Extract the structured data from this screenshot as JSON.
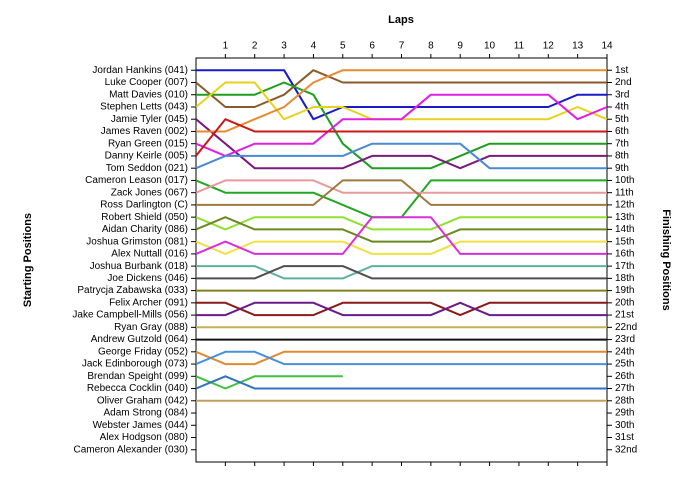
{
  "chart_data": {
    "type": "line",
    "title": "Laps",
    "y_label": "Starting Positions",
    "y2_label": "Finishing Positions",
    "x": [
      0,
      1,
      2,
      3,
      4,
      5,
      6,
      7,
      8,
      9,
      10,
      11,
      12,
      13,
      14
    ],
    "xlim": [
      0,
      14
    ],
    "xticks": [
      1,
      2,
      3,
      4,
      5,
      6,
      7,
      8,
      9,
      10,
      11,
      12,
      13,
      14
    ],
    "ylim": [
      33,
      0
    ],
    "y2lim": [
      33,
      0
    ],
    "y2ticks": [
      {
        "value": 1,
        "label": "1st"
      },
      {
        "value": 2,
        "label": "2nd"
      },
      {
        "value": 3,
        "label": "3rd"
      },
      {
        "value": 4,
        "label": "4th"
      },
      {
        "value": 5,
        "label": "5th"
      },
      {
        "value": 6,
        "label": "6th"
      },
      {
        "value": 7,
        "label": "7th"
      },
      {
        "value": 8,
        "label": "8th"
      },
      {
        "value": 9,
        "label": "9th"
      },
      {
        "value": 10,
        "label": "10th"
      },
      {
        "value": 11,
        "label": "11th"
      },
      {
        "value": 12,
        "label": "12th"
      },
      {
        "value": 13,
        "label": "13th"
      },
      {
        "value": 14,
        "label": "14th"
      },
      {
        "value": 15,
        "label": "15th"
      },
      {
        "value": 16,
        "label": "16th"
      },
      {
        "value": 17,
        "label": "17th"
      },
      {
        "value": 18,
        "label": "18th"
      },
      {
        "value": 19,
        "label": "19th"
      },
      {
        "value": 20,
        "label": "20th"
      },
      {
        "value": 21,
        "label": "21st"
      },
      {
        "value": 22,
        "label": "22nd"
      },
      {
        "value": 23,
        "label": "23rd"
      },
      {
        "value": 24,
        "label": "24th"
      },
      {
        "value": 25,
        "label": "25th"
      },
      {
        "value": 26,
        "label": "26th"
      },
      {
        "value": 27,
        "label": "27th"
      },
      {
        "value": 28,
        "label": "28th"
      },
      {
        "value": 29,
        "label": "29th"
      },
      {
        "value": 30,
        "label": "30th"
      },
      {
        "value": 31,
        "label": "31st"
      },
      {
        "value": 32,
        "label": "32nd"
      }
    ],
    "series": [
      {
        "name": "Jordan Hankins (041)",
        "color": "#1a1ac8",
        "values": [
          1,
          1,
          1,
          1,
          5,
          4,
          4,
          4,
          4,
          4,
          4,
          4,
          4,
          3,
          3
        ]
      },
      {
        "name": "Luke Cooper (007)",
        "color": "#8b5a2b",
        "values": [
          2,
          4,
          4,
          3,
          1,
          2,
          2,
          2,
          2,
          2,
          2,
          2,
          2,
          2,
          2
        ]
      },
      {
        "name": "Matt Davies (010)",
        "color": "#1e9e1e",
        "values": [
          3,
          3,
          3,
          2,
          3,
          7,
          9,
          9,
          9,
          8,
          7,
          7,
          7,
          7,
          7
        ]
      },
      {
        "name": "Stephen Letts (043)",
        "color": "#e6d21e",
        "values": [
          4,
          2,
          2,
          5,
          4,
          4,
          5,
          5,
          5,
          5,
          5,
          5,
          5,
          4,
          5
        ]
      },
      {
        "name": "Jamie Tyler (045)",
        "color": "#7a1a7a",
        "values": [
          5,
          7,
          9,
          9,
          9,
          9,
          8,
          8,
          8,
          9,
          8,
          8,
          8,
          8,
          8
        ]
      },
      {
        "name": "James Raven (002)",
        "color": "#e88a2e",
        "values": [
          6,
          6,
          5,
          4,
          2,
          1,
          1,
          1,
          1,
          1,
          1,
          1,
          1,
          1,
          1
        ]
      },
      {
        "name": "Ryan Green (015)",
        "color": "#e020e0",
        "values": [
          7,
          8,
          7,
          7,
          7,
          5,
          5,
          5,
          3,
          3,
          3,
          3,
          3,
          5,
          4
        ]
      },
      {
        "name": "Danny Keirle (005)",
        "color": "#c81818",
        "values": [
          8,
          5,
          6,
          6,
          6,
          6,
          6,
          6,
          6,
          6,
          6,
          6,
          6,
          6,
          6
        ]
      },
      {
        "name": "Tom Seddon (021)",
        "color": "#4a8ad0",
        "values": [
          9,
          8,
          8,
          8,
          8,
          8,
          7,
          7,
          7,
          7,
          9,
          9,
          9,
          9,
          9
        ]
      },
      {
        "name": "Cameron Leason (017)",
        "color": "#22a822",
        "values": [
          10,
          11,
          11,
          11,
          11,
          12,
          13,
          13,
          10,
          10,
          10,
          10,
          10,
          10,
          10
        ]
      },
      {
        "name": "Zack Jones (067)",
        "color": "#e89a9a",
        "values": [
          11,
          10,
          10,
          10,
          10,
          11,
          11,
          11,
          11,
          11,
          11,
          11,
          11,
          11,
          11
        ]
      },
      {
        "name": "Ross Darlington (C)",
        "color": "#a07840",
        "values": [
          12,
          12,
          12,
          12,
          12,
          10,
          10,
          10,
          12,
          12,
          12,
          12,
          12,
          12,
          12
        ]
      },
      {
        "name": "Robert Shield (050)",
        "color": "#90e030",
        "values": [
          13,
          14,
          13,
          13,
          13,
          13,
          14,
          14,
          14,
          13,
          13,
          13,
          13,
          13,
          13
        ]
      },
      {
        "name": "Aidan Charity (086)",
        "color": "#6a8a20",
        "values": [
          14,
          13,
          14,
          14,
          14,
          14,
          15,
          15,
          15,
          14,
          14,
          14,
          14,
          14,
          14
        ]
      },
      {
        "name": "Joshua Grimston (081)",
        "color": "#f0e040",
        "values": [
          15,
          16,
          15,
          15,
          15,
          15,
          16,
          16,
          16,
          15,
          15,
          15,
          15,
          15,
          15
        ]
      },
      {
        "name": "Alex Nuttall (016)",
        "color": "#d830d8",
        "values": [
          16,
          15,
          16,
          16,
          16,
          16,
          13,
          13,
          13,
          16,
          16,
          16,
          16,
          16,
          16
        ]
      },
      {
        "name": "Joshua Burbank (018)",
        "color": "#60b0a0",
        "values": [
          17,
          17,
          17,
          18,
          18,
          18,
          17,
          17,
          17,
          17,
          17,
          17,
          17,
          17,
          17
        ]
      },
      {
        "name": "Joe Dickens (046)",
        "color": "#505050",
        "values": [
          18,
          18,
          18,
          17,
          17,
          17,
          18,
          18,
          18,
          18,
          18,
          18,
          18,
          18,
          18
        ]
      },
      {
        "name": "Patrycja Zabawska (033)",
        "color": "#808020",
        "values": [
          19,
          19,
          19,
          19,
          19,
          19,
          19,
          19,
          19,
          19,
          19,
          19,
          19,
          19,
          19
        ]
      },
      {
        "name": "Felix Archer (091)",
        "color": "#8a1a1a",
        "values": [
          20,
          20,
          21,
          21,
          21,
          20,
          20,
          20,
          20,
          21,
          20,
          20,
          20,
          20,
          20
        ]
      },
      {
        "name": "Jake Campbell-Mills (056)",
        "color": "#6a1a8a",
        "values": [
          21,
          21,
          20,
          20,
          20,
          21,
          21,
          21,
          21,
          20,
          21,
          21,
          21,
          21,
          21
        ]
      },
      {
        "name": "Ryan Gray (088)",
        "color": "#c8b050",
        "values": [
          22,
          22,
          22,
          22,
          22,
          22,
          22,
          22,
          22,
          22,
          22,
          22,
          22,
          22,
          22
        ]
      },
      {
        "name": "Andrew Gutzold (064)",
        "color": "#101010",
        "values": [
          23,
          23,
          23,
          23,
          23,
          23,
          23,
          23,
          23,
          23,
          23,
          23,
          23,
          23,
          23
        ]
      },
      {
        "name": "George Friday (052)",
        "color": "#e08a30",
        "values": [
          24,
          25,
          25,
          24,
          24,
          24,
          24,
          24,
          24,
          24,
          24,
          24,
          24,
          24,
          24
        ]
      },
      {
        "name": "Jack Edinborough (073)",
        "color": "#4a90d8",
        "values": [
          25,
          24,
          24,
          25,
          25,
          25,
          25,
          25,
          25,
          25,
          25,
          25,
          25,
          25,
          25
        ]
      },
      {
        "name": "Brendan Speight (099)",
        "color": "#40c040",
        "values": [
          26,
          27,
          26,
          26,
          26,
          26,
          null,
          null,
          null,
          null,
          null,
          null,
          null,
          null,
          null
        ]
      },
      {
        "name": "Rebecca Cocklin (040)",
        "color": "#3070c0",
        "values": [
          27,
          26,
          27,
          27,
          27,
          27,
          27,
          27,
          27,
          27,
          27,
          27,
          27,
          27,
          27
        ]
      },
      {
        "name": "Oliver Graham (042)",
        "color": "#c0a060",
        "values": [
          28,
          28,
          28,
          28,
          28,
          28,
          28,
          28,
          28,
          28,
          28,
          28,
          28,
          28,
          28
        ]
      },
      {
        "name": "Adam Strong (084)",
        "color": "#909090",
        "values": [
          29,
          null,
          null,
          null,
          null,
          null,
          null,
          null,
          null,
          null,
          null,
          null,
          null,
          null,
          null
        ]
      },
      {
        "name": "Webster James (044)",
        "color": "#909090",
        "values": [
          30,
          null,
          null,
          null,
          null,
          null,
          null,
          null,
          null,
          null,
          null,
          null,
          null,
          null,
          null
        ]
      },
      {
        "name": "Alex Hodgson (080)",
        "color": "#909090",
        "values": [
          31,
          null,
          null,
          null,
          null,
          null,
          null,
          null,
          null,
          null,
          null,
          null,
          null,
          null,
          null
        ]
      },
      {
        "name": "Cameron Alexander (030)",
        "color": "#909090",
        "values": [
          32,
          null,
          null,
          null,
          null,
          null,
          null,
          null,
          null,
          null,
          null,
          null,
          null,
          null,
          null
        ]
      }
    ]
  }
}
